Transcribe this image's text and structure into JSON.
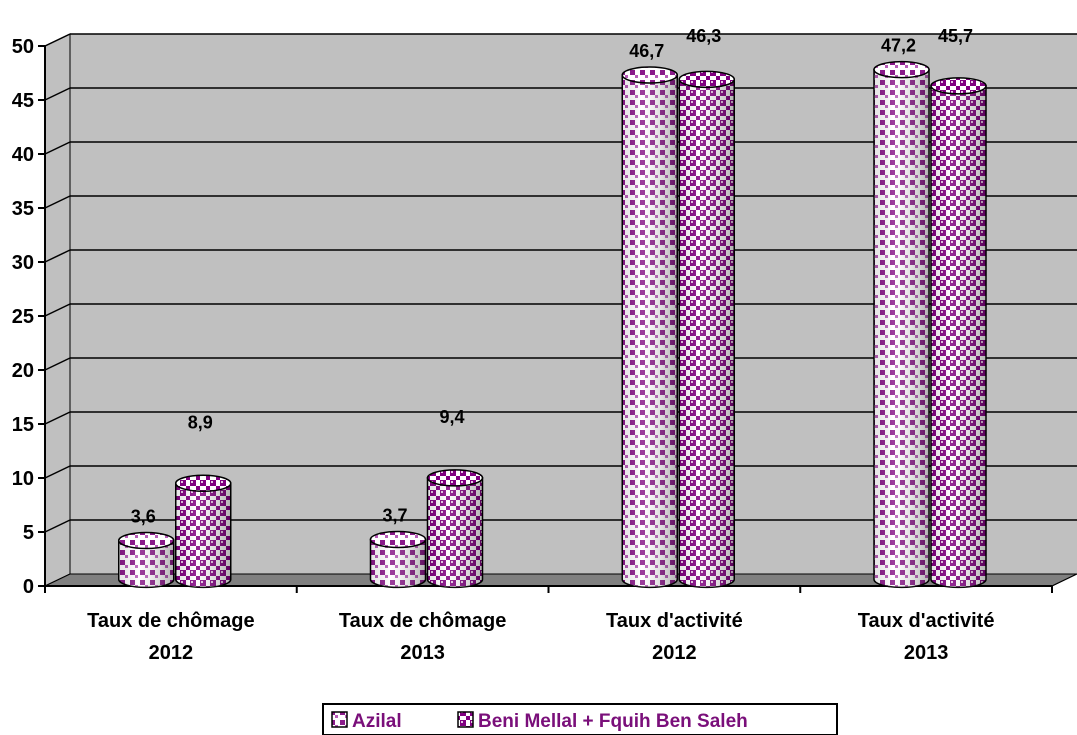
{
  "chart_data": {
    "type": "bar",
    "title": "",
    "xlabel": "",
    "ylabel": "",
    "ylim": [
      0,
      50
    ],
    "yticks": [
      0,
      5,
      10,
      15,
      20,
      25,
      30,
      35,
      40,
      45,
      50
    ],
    "grid": true,
    "categories": [
      [
        "Taux de chômage",
        "2012"
      ],
      [
        "Taux de chômage",
        "2013"
      ],
      [
        "Taux d'activité",
        "2012"
      ],
      [
        "Taux d'activité",
        "2013"
      ]
    ],
    "series": [
      {
        "name": "Azilal",
        "values": [
          3.6,
          3.7,
          46.7,
          47.2
        ],
        "labels": [
          "3,6",
          "3,7",
          "46,7",
          "47,2"
        ]
      },
      {
        "name": "Beni Mellal + Fquih Ben Saleh",
        "values": [
          8.9,
          9.4,
          46.3,
          45.7
        ],
        "labels": [
          "8,9",
          "9,4",
          "46,3",
          "45,7"
        ]
      }
    ],
    "legend_position": "bottom",
    "colors": {
      "wall": "#c0c0c0",
      "floor": "#808080",
      "pattern_dark": "#800080",
      "pattern_light": "#ffffff",
      "legend_text": "#7a0f7a"
    }
  }
}
